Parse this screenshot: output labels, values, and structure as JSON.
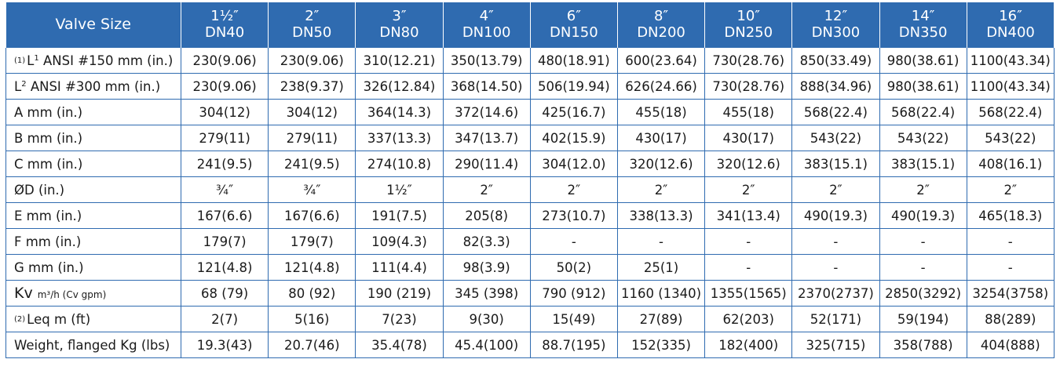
{
  "header": {
    "first": "Valve Size",
    "sizes": [
      {
        "inch": "1½″",
        "dn": "DN40"
      },
      {
        "inch": "2″",
        "dn": "DN50"
      },
      {
        "inch": "3″",
        "dn": "DN80"
      },
      {
        "inch": "4″",
        "dn": "DN100"
      },
      {
        "inch": "6″",
        "dn": "DN150"
      },
      {
        "inch": "8″",
        "dn": "DN200"
      },
      {
        "inch": "10″",
        "dn": "DN250"
      },
      {
        "inch": "12″",
        "dn": "DN300"
      },
      {
        "inch": "14″",
        "dn": "DN350"
      },
      {
        "inch": "16″",
        "dn": "DN400"
      }
    ]
  },
  "rows": [
    {
      "note": "(1)",
      "label": "L",
      "sup": "1",
      "label_rest": " ANSI #150 mm (in.)",
      "values": [
        "230(9.06)",
        "230(9.06)",
        "310(12.21)",
        "350(13.79)",
        "480(18.91)",
        "600(23.64)",
        "730(28.76)",
        "850(33.49)",
        "980(38.61)",
        "1100(43.34)"
      ]
    },
    {
      "note": "",
      "label": "L",
      "sup": "2",
      "label_rest": " ANSI #300 mm (in.)",
      "values": [
        "230(9.06)",
        "238(9.37)",
        "326(12.84)",
        "368(14.50)",
        "506(19.94)",
        "626(24.66)",
        "730(28.76)",
        "888(34.96)",
        "980(38.61)",
        "1100(43.34)"
      ]
    },
    {
      "note": "",
      "label": "A mm (in.)",
      "sup": "",
      "label_rest": "",
      "values": [
        "304(12)",
        "304(12)",
        "364(14.3)",
        "372(14.6)",
        "425(16.7)",
        "455(18)",
        "455(18)",
        "568(22.4)",
        "568(22.4)",
        "568(22.4)"
      ]
    },
    {
      "note": "",
      "label": "B mm (in.)",
      "sup": "",
      "label_rest": "",
      "values": [
        "279(11)",
        "279(11)",
        "337(13.3)",
        "347(13.7)",
        "402(15.9)",
        "430(17)",
        "430(17)",
        "543(22)",
        "543(22)",
        "543(22)"
      ]
    },
    {
      "note": "",
      "label": "C mm (in.)",
      "sup": "",
      "label_rest": "",
      "values": [
        "241(9.5)",
        "241(9.5)",
        "274(10.8)",
        "290(11.4)",
        "304(12.0)",
        "320(12.6)",
        "320(12.6)",
        "383(15.1)",
        "383(15.1)",
        "408(16.1)"
      ]
    },
    {
      "note": "",
      "label": "ØD (in.)",
      "sup": "",
      "label_rest": "",
      "values": [
        "¾″",
        "¾″",
        "1½″",
        "2″",
        "2″",
        "2″",
        "2″",
        "2″",
        "2″",
        "2″"
      ]
    },
    {
      "note": "",
      "label": "E mm (in.)",
      "sup": "",
      "label_rest": "",
      "values": [
        "167(6.6)",
        "167(6.6)",
        "191(7.5)",
        "205(8)",
        "273(10.7)",
        "338(13.3)",
        "341(13.4)",
        "490(19.3)",
        "490(19.3)",
        "465(18.3)"
      ]
    },
    {
      "note": "",
      "label": "F mm (in.)",
      "sup": "",
      "label_rest": "",
      "values": [
        "179(7)",
        "179(7)",
        "109(4.3)",
        "82(3.3)",
        "-",
        "-",
        "-",
        "-",
        "-",
        "-"
      ]
    },
    {
      "note": "",
      "label": "G mm (in.)",
      "sup": "",
      "label_rest": "",
      "values": [
        "121(4.8)",
        "121(4.8)",
        "111(4.4)",
        "98(3.9)",
        "50(2)",
        "25(1)",
        "-",
        "-",
        "-",
        "-"
      ]
    },
    {
      "note": "",
      "label": "Kv",
      "sup": "",
      "label_rest": "m³/h (Cv gpm)",
      "values": [
        "68 (79)",
        "80 (92)",
        "190 (219)",
        "345 (398)",
        "790 (912)",
        "1160 (1340)",
        "1355(1565)",
        "2370(2737)",
        "2850(3292)",
        "3254(3758)"
      ]
    },
    {
      "note": "(2)",
      "label": "Leq m (ft)",
      "sup": "",
      "label_rest": "",
      "values": [
        "2(7)",
        "5(16)",
        "7(23)",
        "9(30)",
        "15(49)",
        "27(89)",
        "62(203)",
        "52(171)",
        "59(194)",
        "88(289)"
      ]
    },
    {
      "note": "",
      "label": "Weight, flanged Kg (lbs)",
      "sup": "",
      "label_rest": "",
      "values": [
        "19.3(43)",
        "20.7(46)",
        "35.4(78)",
        "45.4(100)",
        "88.7(195)",
        "152(335)",
        "182(400)",
        "325(715)",
        "358(788)",
        "404(888)"
      ]
    }
  ],
  "colors": {
    "header_bg": "#2f6bb0",
    "header_text": "#ffffff",
    "grid": "#2f6bb0"
  }
}
